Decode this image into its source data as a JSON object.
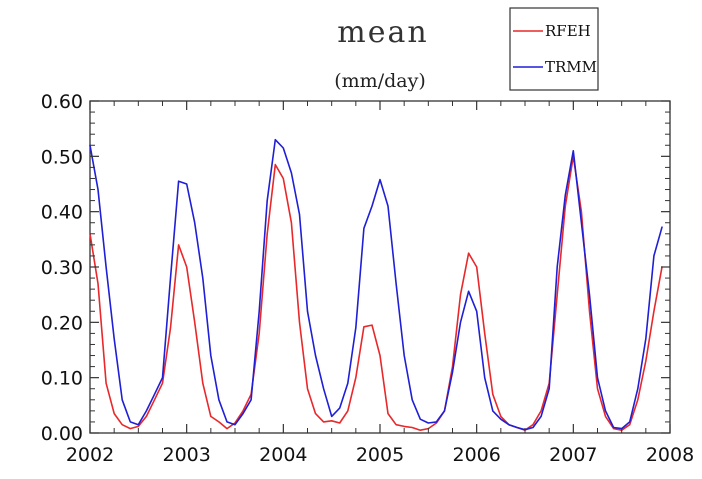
{
  "chart_data": {
    "type": "line",
    "title": "mean",
    "subtitle": "(mm/day)",
    "xlabel": "",
    "ylabel": "",
    "xlim": [
      2002,
      2008
    ],
    "ylim": [
      0,
      0.6
    ],
    "x_ticks": [
      "2002",
      "2003",
      "2004",
      "2005",
      "2006",
      "2007",
      "2008"
    ],
    "y_ticks": [
      "0.00",
      "0.10",
      "0.20",
      "0.30",
      "0.40",
      "0.50",
      "0.60"
    ],
    "grid": false,
    "legend_position": "top-right",
    "series": [
      {
        "name": "RFEH",
        "color": "#e8282a",
        "x": [
          2002.0,
          2002.083,
          2002.167,
          2002.25,
          2002.333,
          2002.417,
          2002.5,
          2002.583,
          2002.667,
          2002.75,
          2002.833,
          2002.917,
          2003.0,
          2003.083,
          2003.167,
          2003.25,
          2003.333,
          2003.417,
          2003.5,
          2003.583,
          2003.667,
          2003.75,
          2003.833,
          2003.917,
          2004.0,
          2004.083,
          2004.167,
          2004.25,
          2004.333,
          2004.417,
          2004.5,
          2004.583,
          2004.667,
          2004.75,
          2004.833,
          2004.917,
          2005.0,
          2005.083,
          2005.167,
          2005.25,
          2005.333,
          2005.417,
          2005.5,
          2005.583,
          2005.667,
          2005.75,
          2005.833,
          2005.917,
          2006.0,
          2006.083,
          2006.167,
          2006.25,
          2006.333,
          2006.417,
          2006.5,
          2006.583,
          2006.667,
          2006.75,
          2006.833,
          2006.917,
          2007.0,
          2007.083,
          2007.167,
          2007.25,
          2007.333,
          2007.417,
          2007.5,
          2007.583,
          2007.667,
          2007.75,
          2007.833,
          2007.917
        ],
        "values": [
          0.36,
          0.27,
          0.09,
          0.035,
          0.015,
          0.008,
          0.012,
          0.03,
          0.06,
          0.09,
          0.19,
          0.34,
          0.3,
          0.2,
          0.09,
          0.03,
          0.02,
          0.008,
          0.018,
          0.04,
          0.07,
          0.18,
          0.36,
          0.485,
          0.46,
          0.38,
          0.2,
          0.08,
          0.035,
          0.02,
          0.022,
          0.018,
          0.04,
          0.1,
          0.192,
          0.195,
          0.14,
          0.035,
          0.015,
          0.012,
          0.01,
          0.005,
          0.008,
          0.018,
          0.04,
          0.12,
          0.25,
          0.325,
          0.3,
          0.18,
          0.07,
          0.03,
          0.015,
          0.01,
          0.005,
          0.015,
          0.04,
          0.09,
          0.25,
          0.41,
          0.5,
          0.4,
          0.22,
          0.08,
          0.03,
          0.008,
          0.005,
          0.015,
          0.06,
          0.13,
          0.22,
          0.3
        ]
      },
      {
        "name": "TRMM",
        "color": "#1f1fd6",
        "x": [
          2002.0,
          2002.083,
          2002.167,
          2002.25,
          2002.333,
          2002.417,
          2002.5,
          2002.583,
          2002.667,
          2002.75,
          2002.833,
          2002.917,
          2003.0,
          2003.083,
          2003.167,
          2003.25,
          2003.333,
          2003.417,
          2003.5,
          2003.583,
          2003.667,
          2003.75,
          2003.833,
          2003.917,
          2004.0,
          2004.083,
          2004.167,
          2004.25,
          2004.333,
          2004.417,
          2004.5,
          2004.583,
          2004.667,
          2004.75,
          2004.833,
          2004.917,
          2005.0,
          2005.083,
          2005.167,
          2005.25,
          2005.333,
          2005.417,
          2005.5,
          2005.583,
          2005.667,
          2005.75,
          2005.833,
          2005.917,
          2006.0,
          2006.083,
          2006.167,
          2006.25,
          2006.333,
          2006.417,
          2006.5,
          2006.583,
          2006.667,
          2006.75,
          2006.833,
          2006.917,
          2007.0,
          2007.083,
          2007.167,
          2007.25,
          2007.333,
          2007.417,
          2007.5,
          2007.583,
          2007.667,
          2007.75,
          2007.833,
          2007.917
        ],
        "values": [
          0.52,
          0.44,
          0.3,
          0.17,
          0.06,
          0.02,
          0.015,
          0.04,
          0.07,
          0.1,
          0.28,
          0.455,
          0.45,
          0.38,
          0.28,
          0.14,
          0.06,
          0.02,
          0.015,
          0.035,
          0.06,
          0.22,
          0.42,
          0.53,
          0.515,
          0.47,
          0.395,
          0.22,
          0.14,
          0.08,
          0.03,
          0.045,
          0.09,
          0.19,
          0.37,
          0.41,
          0.458,
          0.41,
          0.27,
          0.14,
          0.06,
          0.025,
          0.018,
          0.02,
          0.04,
          0.11,
          0.2,
          0.256,
          0.22,
          0.1,
          0.04,
          0.025,
          0.015,
          0.01,
          0.006,
          0.01,
          0.03,
          0.08,
          0.3,
          0.43,
          0.51,
          0.38,
          0.25,
          0.1,
          0.04,
          0.01,
          0.008,
          0.02,
          0.08,
          0.17,
          0.32,
          0.372
        ]
      }
    ]
  }
}
